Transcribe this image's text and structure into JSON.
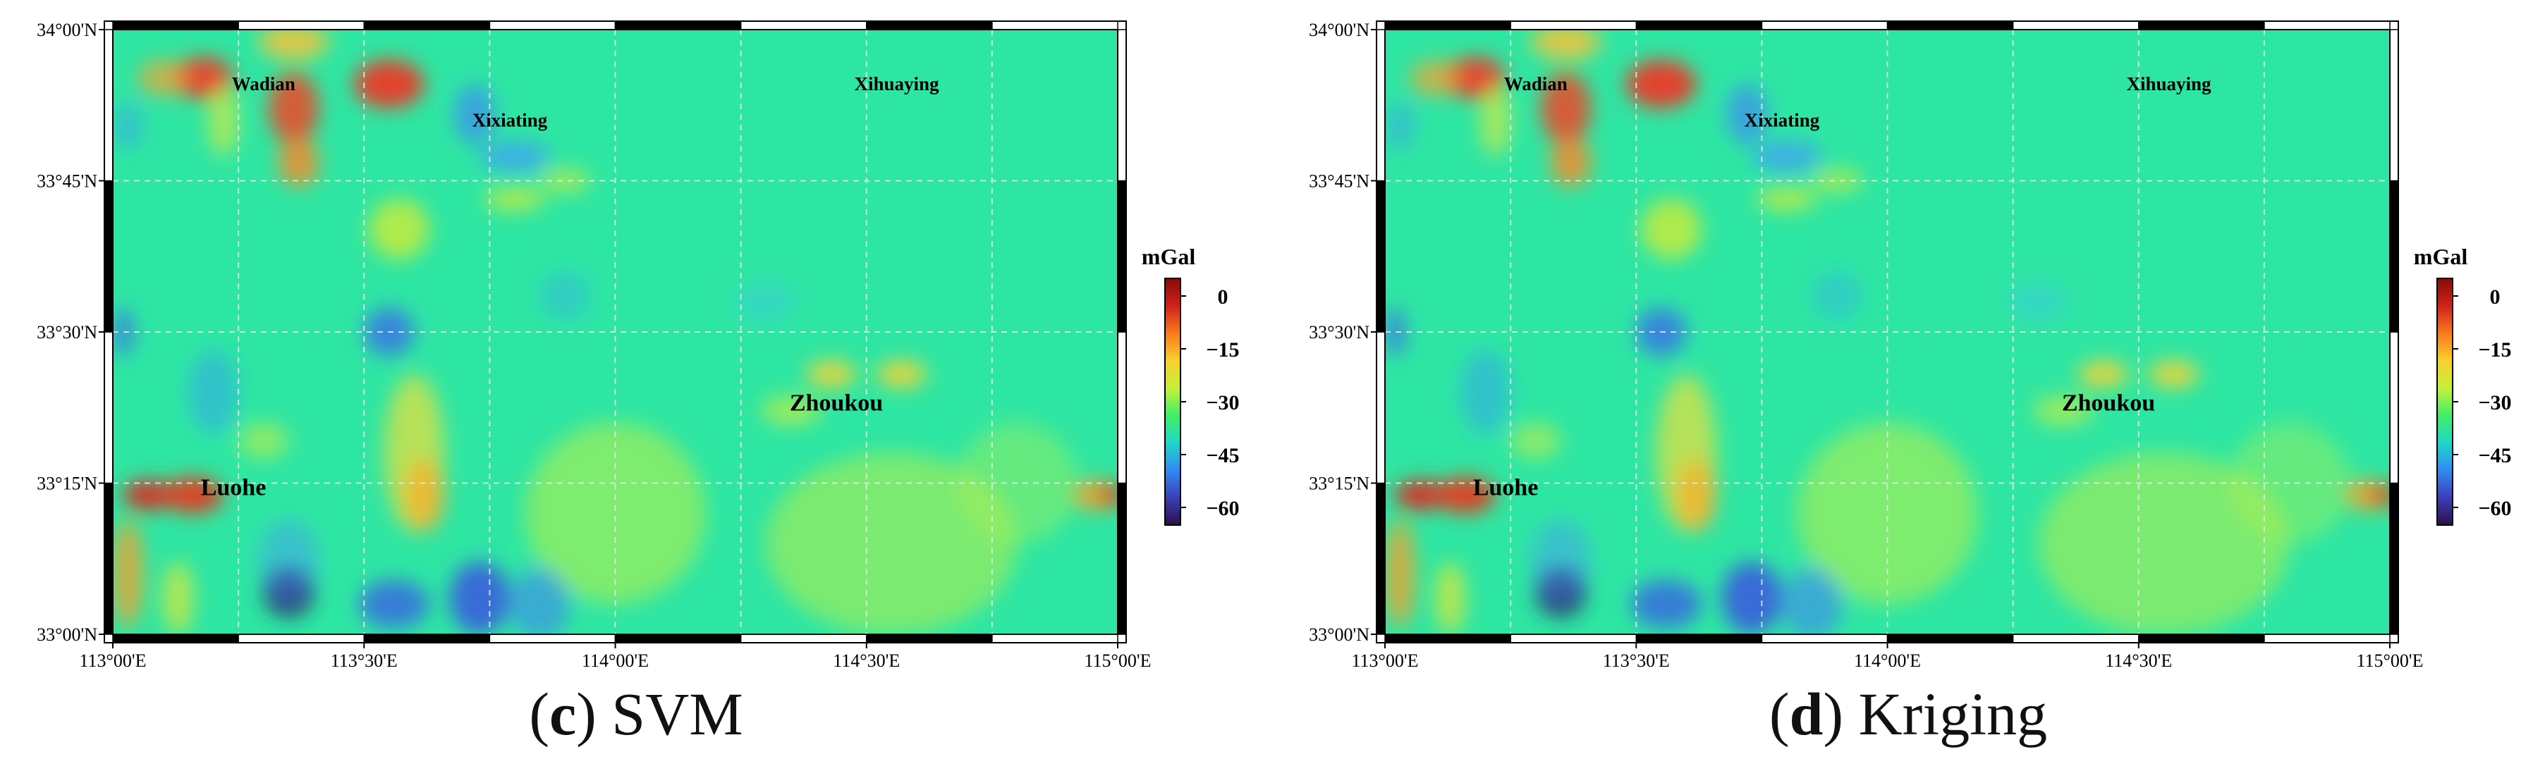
{
  "colorbar": {
    "title": "mGal",
    "ticks": [
      "0",
      "−15",
      "−30",
      "−45",
      "−60"
    ],
    "tick_values": [
      0,
      -15,
      -30,
      -45,
      -60
    ],
    "range": [
      -65,
      5
    ],
    "colors": [
      "#2d0f4b",
      "#3b3fb6",
      "#2f8cf2",
      "#1fd6c8",
      "#3fef66",
      "#c6f03a",
      "#f9d02c",
      "#f97a1d",
      "#d0221a",
      "#850b08"
    ]
  },
  "axes": {
    "lat_labels": [
      "34°00'N",
      "33°45'N",
      "33°30'N",
      "33°15'N",
      "33°00'N"
    ],
    "lon_labels": [
      "113°00'E",
      "113°30'E",
      "114°00'E",
      "114°30'E",
      "115°00'E"
    ],
    "lat_range": [
      33.0,
      34.0
    ],
    "lon_range": [
      113.0,
      115.0
    ]
  },
  "places": [
    {
      "name": "Wadian",
      "lon": 113.3,
      "lat": 33.9,
      "size": "small"
    },
    {
      "name": "Xixiating",
      "lon": 113.79,
      "lat": 33.84,
      "size": "small"
    },
    {
      "name": "Xihuaying",
      "lon": 114.56,
      "lat": 33.9,
      "size": "small"
    },
    {
      "name": "Zhoukou",
      "lon": 114.44,
      "lat": 33.37,
      "size": "large"
    },
    {
      "name": "Luohe",
      "lon": 113.24,
      "lat": 33.23,
      "size": "large"
    }
  ],
  "panels": [
    {
      "letter": "c",
      "method": "SVM",
      "paren_open": "(",
      "paren_close": ")"
    },
    {
      "letter": "d",
      "method": "Kriging",
      "paren_open": "(",
      "paren_close": ")"
    }
  ]
}
